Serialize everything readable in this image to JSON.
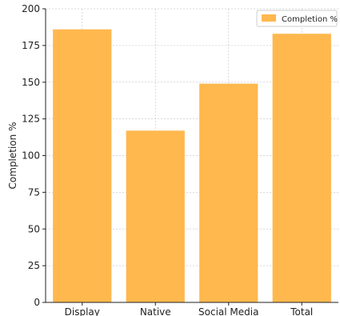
{
  "chart_data": {
    "type": "bar",
    "title": "",
    "xlabel": "",
    "ylabel": "Completion %",
    "categories": [
      "Display",
      "Native",
      "Social Media",
      "Total"
    ],
    "series": [
      {
        "name": "Completion %",
        "values": [
          186,
          117,
          149,
          183
        ]
      }
    ],
    "ylim": [
      0,
      200
    ],
    "yticks": [
      0,
      25,
      50,
      75,
      100,
      125,
      150,
      175,
      200
    ],
    "grid": true,
    "legend_position": "top-right",
    "colors": {
      "bar": "#ffb84d",
      "grid": "#cccccc",
      "axis": "#222222"
    }
  }
}
